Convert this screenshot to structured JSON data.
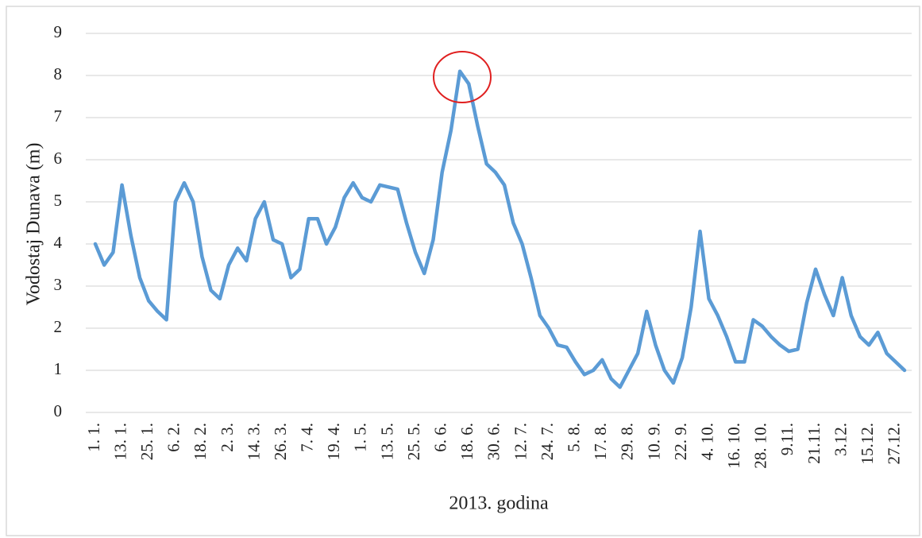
{
  "chart_data": {
    "type": "line",
    "y_label": "Vodostaj Dunava (m)",
    "x_label": "2013. godina",
    "categories": [
      "1. 1.",
      null,
      null,
      "13. 1.",
      null,
      null,
      "25. 1.",
      null,
      null,
      "6. 2.",
      null,
      null,
      "18. 2.",
      null,
      null,
      "2. 3.",
      null,
      null,
      "14. 3.",
      null,
      null,
      "26. 3.",
      null,
      null,
      "7. 4.",
      null,
      null,
      "19. 4.",
      null,
      null,
      "1. 5.",
      null,
      null,
      "13. 5.",
      null,
      null,
      "25. 5.",
      null,
      null,
      "6. 6.",
      null,
      null,
      "18. 6.",
      null,
      null,
      "30. 6.",
      null,
      null,
      "12. 7.",
      null,
      null,
      "24. 7.",
      null,
      null,
      "5. 8.",
      null,
      null,
      "17. 8.",
      null,
      null,
      "29. 8.",
      null,
      null,
      "10. 9.",
      null,
      null,
      "22. 9.",
      null,
      null,
      "4. 10.",
      null,
      null,
      "16. 10.",
      null,
      null,
      "28. 10.",
      null,
      null,
      "9.11.",
      null,
      null,
      "21.11.",
      null,
      null,
      "3.12.",
      null,
      null,
      "15.12.",
      null,
      null,
      "27.12.",
      null
    ],
    "values": [
      4.0,
      3.5,
      3.8,
      5.4,
      4.2,
      3.2,
      2.65,
      2.4,
      2.2,
      5.0,
      5.45,
      5.0,
      3.7,
      2.9,
      2.7,
      3.5,
      3.9,
      3.6,
      4.6,
      5.0,
      4.1,
      4.0,
      3.2,
      3.4,
      4.6,
      4.6,
      4.0,
      4.4,
      5.1,
      5.45,
      5.1,
      5.0,
      5.4,
      5.35,
      5.3,
      4.5,
      3.8,
      3.3,
      4.1,
      5.7,
      6.7,
      8.1,
      7.8,
      6.8,
      5.9,
      5.7,
      5.4,
      4.5,
      4.0,
      3.2,
      2.3,
      2.0,
      1.6,
      1.55,
      1.2,
      0.9,
      1.0,
      1.25,
      0.8,
      0.6,
      1.0,
      1.4,
      2.4,
      1.6,
      1.0,
      0.7,
      1.3,
      2.5,
      4.3,
      2.7,
      2.3,
      1.8,
      1.2,
      1.2,
      2.2,
      2.05,
      1.8,
      1.6,
      1.45,
      1.5,
      2.6,
      3.4,
      2.8,
      2.3,
      3.2,
      2.3,
      1.8,
      1.6,
      1.9,
      1.4,
      1.2,
      1.0
    ],
    "color": "#5b9bd5",
    "ylim": [
      0,
      9
    ],
    "yticks": [
      0,
      1,
      2,
      3,
      4,
      5,
      6,
      7,
      8,
      9
    ],
    "grid": true
  }
}
